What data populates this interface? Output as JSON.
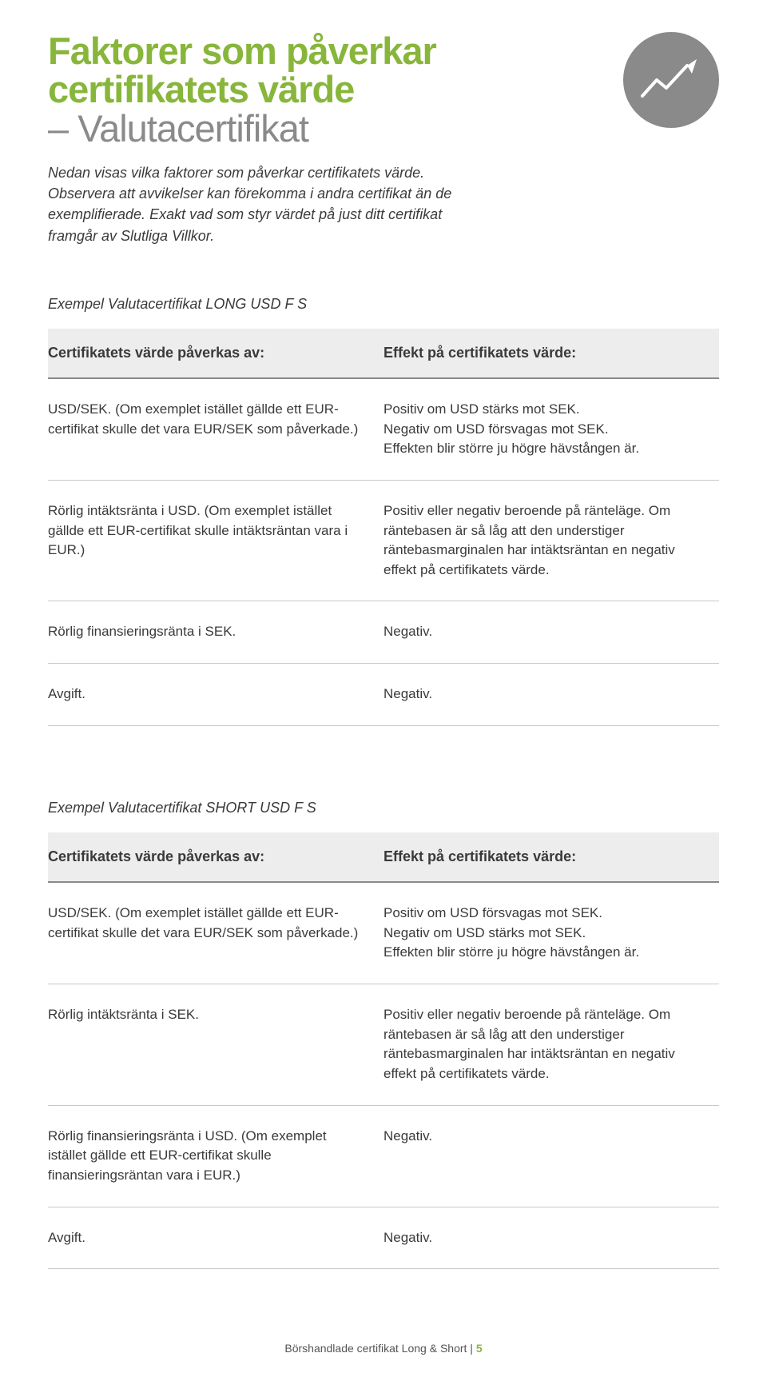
{
  "colors": {
    "title_green": "#88b63b",
    "title_sub": "#8a8a8a",
    "icon_bg": "#8a8a8a",
    "icon_stroke": "#ffffff",
    "text": "#3a3a3a",
    "header_bg": "#ededed",
    "header_border": "#8a8a8a",
    "row_border": "#c9c9c9",
    "footer_accent": "#88b63b"
  },
  "title": {
    "line1": "Faktorer som påverkar",
    "line2": "certifikatets värde",
    "sub_prefix": "– ",
    "sub": "Valutacertifikat"
  },
  "intro": "Nedan visas vilka faktorer som påverkar certifikatets värde. Observera att avvikelser kan förekomma i andra certifikat än de exemplifierade. Exakt vad som styr värdet på just ditt certifikat framgår av Slutliga Villkor.",
  "tables": [
    {
      "example_label": "Exempel Valutacertifikat LONG USD F S",
      "head_left": "Certifikatets värde påverkas av:",
      "head_right": "Effekt på certifikatets värde:",
      "rows": [
        {
          "left": "USD/SEK. (Om exemplet istället gällde ett EUR-certifikat skulle det vara EUR/SEK som påverkade.)",
          "right": "Positiv om USD stärks mot SEK.\nNegativ om USD försvagas mot SEK.\nEffekten blir större ju högre hävstången är."
        },
        {
          "left": "Rörlig intäktsränta i USD. (Om exemplet istället gällde ett EUR-certifikat skulle intäktsräntan vara i EUR.)",
          "right": "Positiv eller negativ beroende på ränteläge. Om räntebasen är så låg att den understiger räntebasmarginalen har intäktsräntan en negativ effekt på certifikatets värde."
        },
        {
          "left": "Rörlig finansieringsränta i SEK.",
          "right": "Negativ."
        },
        {
          "left": "Avgift.",
          "right": "Negativ."
        }
      ]
    },
    {
      "example_label": "Exempel Valutacertifikat SHORT USD F S",
      "head_left": "Certifikatets värde påverkas av:",
      "head_right": "Effekt på certifikatets värde:",
      "rows": [
        {
          "left": "USD/SEK. (Om exemplet istället gällde ett EUR-certifikat skulle det vara EUR/SEK som påverkade.)",
          "right": "Positiv om USD försvagas mot SEK.\nNegativ om USD stärks mot SEK.\nEffekten blir större ju högre hävstången är."
        },
        {
          "left": "Rörlig intäktsränta i SEK.",
          "right": "Positiv eller negativ beroende på ränteläge. Om räntebasen är så låg att den understiger räntebasmarginalen har intäktsräntan en negativ effekt på certifikatets värde."
        },
        {
          "left": "Rörlig finansieringsränta i USD. (Om exemplet istället gällde ett EUR-certifikat skulle finansieringsräntan vara i EUR.)",
          "right": "Negativ."
        },
        {
          "left": "Avgift.",
          "right": "Negativ."
        }
      ]
    }
  ],
  "footer": {
    "text": "Börshandlade certifikat Long & Short",
    "sep": " | ",
    "page": "5"
  }
}
